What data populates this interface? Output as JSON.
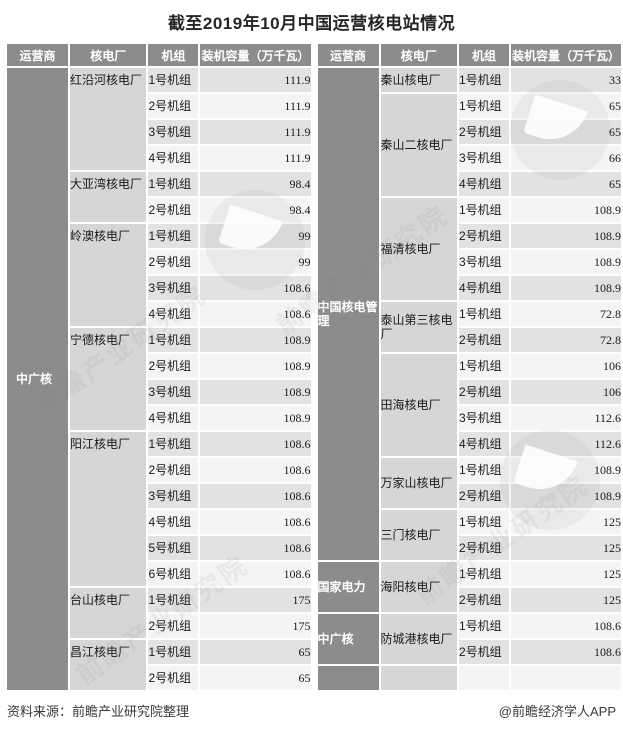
{
  "title": "截至2019年10月中国运营核电站情况",
  "source_note": "资料来源：前瞻产业研究院整理",
  "app_credit": "@前瞻经济学人APP",
  "watermark_text": "前瞻产业研究院",
  "colors": {
    "header_bg": "#8c8c8c",
    "operator_bg": "#8c8c8c",
    "plant_bg": "#d6d6d6",
    "row_dark": "#e2e2e2",
    "row_light": "#f4f4f4",
    "header_text": "#ffffff",
    "body_text": "#1a1a1a"
  },
  "chart_data": {
    "type": "table",
    "title": "截至2019年10月中国运营核电站情况",
    "columns": [
      "运营商",
      "核电厂",
      "机组",
      "装机容量（万千瓦）"
    ],
    "capacity_unit": "万千瓦",
    "tables": [
      {
        "side": "left",
        "operators": [
          {
            "name": "中广核",
            "plants": [
              {
                "name": "红沿河核电厂",
                "units": [
                  {
                    "unit": "1号机组",
                    "capacity": "111.9"
                  },
                  {
                    "unit": "2号机组",
                    "capacity": "111.9"
                  },
                  {
                    "unit": "3号机组",
                    "capacity": "111.9"
                  },
                  {
                    "unit": "4号机组",
                    "capacity": "111.9"
                  }
                ]
              },
              {
                "name": "大亚湾核电厂",
                "units": [
                  {
                    "unit": "1号机组",
                    "capacity": "98.4"
                  },
                  {
                    "unit": "2号机组",
                    "capacity": "98.4"
                  }
                ]
              },
              {
                "name": "岭澳核电厂",
                "units": [
                  {
                    "unit": "1号机组",
                    "capacity": "99"
                  },
                  {
                    "unit": "2号机组",
                    "capacity": "99"
                  },
                  {
                    "unit": "3号机组",
                    "capacity": "108.6"
                  },
                  {
                    "unit": "4号机组",
                    "capacity": "108.6"
                  }
                ]
              },
              {
                "name": "宁德核电厂",
                "units": [
                  {
                    "unit": "1号机组",
                    "capacity": "108.9"
                  },
                  {
                    "unit": "2号机组",
                    "capacity": "108.9"
                  },
                  {
                    "unit": "3号机组",
                    "capacity": "108.9"
                  },
                  {
                    "unit": "4号机组",
                    "capacity": "108.9"
                  }
                ]
              },
              {
                "name": "阳江核电厂",
                "units": [
                  {
                    "unit": "1号机组",
                    "capacity": "108.6"
                  },
                  {
                    "unit": "2号机组",
                    "capacity": "108.6"
                  },
                  {
                    "unit": "3号机组",
                    "capacity": "108.6"
                  },
                  {
                    "unit": "4号机组",
                    "capacity": "108.6"
                  },
                  {
                    "unit": "5号机组",
                    "capacity": "108.6"
                  },
                  {
                    "unit": "6号机组",
                    "capacity": "108.6"
                  }
                ]
              },
              {
                "name": "台山核电厂",
                "units": [
                  {
                    "unit": "1号机组",
                    "capacity": "175"
                  },
                  {
                    "unit": "2号机组",
                    "capacity": "175"
                  }
                ]
              },
              {
                "name": "昌江核电厂",
                "units": [
                  {
                    "unit": "1号机组",
                    "capacity": "65"
                  },
                  {
                    "unit": "2号机组",
                    "capacity": "65"
                  }
                ]
              }
            ]
          }
        ]
      },
      {
        "side": "right",
        "operators": [
          {
            "name": "中国核电管理",
            "plants": [
              {
                "name": "秦山核电厂",
                "units": [
                  {
                    "unit": "1号机组",
                    "capacity": "33"
                  }
                ]
              },
              {
                "name": "秦山二核电厂",
                "units": [
                  {
                    "unit": "1号机组",
                    "capacity": "65"
                  },
                  {
                    "unit": "2号机组",
                    "capacity": "65"
                  },
                  {
                    "unit": "3号机组",
                    "capacity": "66"
                  },
                  {
                    "unit": "4号机组",
                    "capacity": "65"
                  }
                ]
              },
              {
                "name": "福清核电厂",
                "units": [
                  {
                    "unit": "1号机组",
                    "capacity": "108.9"
                  },
                  {
                    "unit": "2号机组",
                    "capacity": "108.9"
                  },
                  {
                    "unit": "3号机组",
                    "capacity": "108.9"
                  },
                  {
                    "unit": "4号机组",
                    "capacity": "108.9"
                  }
                ]
              },
              {
                "name": "泰山第三核电厂",
                "units": [
                  {
                    "unit": "1号机组",
                    "capacity": "72.8"
                  },
                  {
                    "unit": "2号机组",
                    "capacity": "72.8"
                  }
                ]
              },
              {
                "name": "田海核电厂",
                "units": [
                  {
                    "unit": "1号机组",
                    "capacity": "106"
                  },
                  {
                    "unit": "2号机组",
                    "capacity": "106"
                  },
                  {
                    "unit": "3号机组",
                    "capacity": "112.6"
                  },
                  {
                    "unit": "4号机组",
                    "capacity": "112.6"
                  }
                ]
              },
              {
                "name": "万家山核电厂",
                "units": [
                  {
                    "unit": "1号机组",
                    "capacity": "108.9"
                  },
                  {
                    "unit": "2号机组",
                    "capacity": "108.9"
                  }
                ]
              },
              {
                "name": "三门核电厂",
                "units": [
                  {
                    "unit": "1号机组",
                    "capacity": "125"
                  },
                  {
                    "unit": "2号机组",
                    "capacity": "125"
                  }
                ]
              }
            ]
          },
          {
            "name": "国家电力",
            "plants": [
              {
                "name": "海阳核电厂",
                "units": [
                  {
                    "unit": "1号机组",
                    "capacity": "125"
                  },
                  {
                    "unit": "2号机组",
                    "capacity": "125"
                  }
                ]
              }
            ]
          },
          {
            "name": "中广核",
            "plants": [
              {
                "name": "防城港核电厂",
                "units": [
                  {
                    "unit": "1号机组",
                    "capacity": "108.6"
                  },
                  {
                    "unit": "2号机组",
                    "capacity": "108.6"
                  }
                ]
              }
            ]
          },
          {
            "name": "",
            "plants": [
              {
                "name": "",
                "units": [
                  {
                    "unit": "",
                    "capacity": ""
                  }
                ]
              }
            ]
          }
        ]
      }
    ]
  }
}
